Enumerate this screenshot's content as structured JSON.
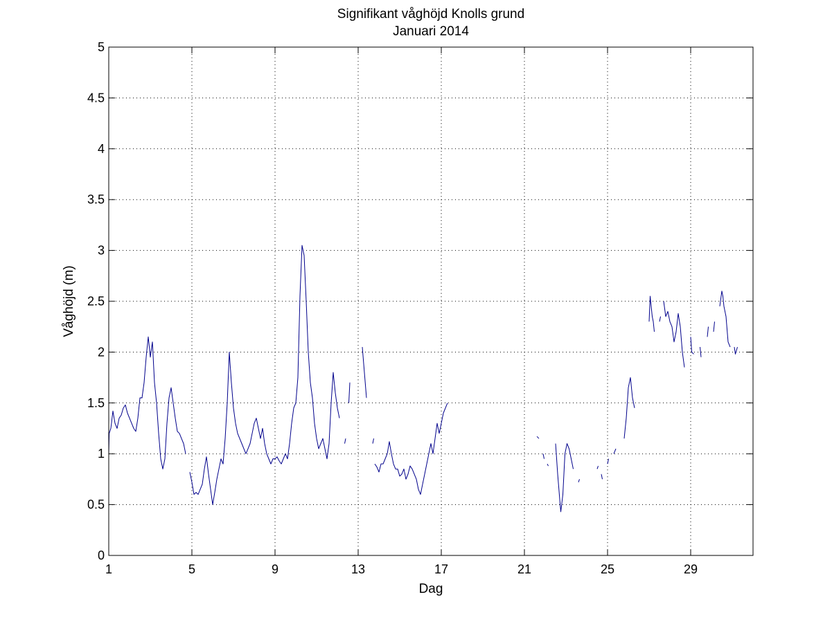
{
  "chart_data": {
    "type": "line",
    "title": "Signifikant våghöjd Knolls grund",
    "subtitle": "Januari 2014",
    "xlabel": "Dag",
    "ylabel": "Våghöjd (m)",
    "xlim": [
      1,
      32
    ],
    "ylim": [
      0,
      5
    ],
    "x_ticks": [
      1,
      5,
      9,
      13,
      17,
      21,
      25,
      29
    ],
    "y_ticks": [
      0,
      0.5,
      1,
      1.5,
      2,
      2.5,
      3,
      3.5,
      4,
      4.5,
      5
    ],
    "y_tick_labels": [
      "0",
      "0.5",
      "1",
      "1.5",
      "2",
      "2.5",
      "3",
      "3.5",
      "4",
      "4.5",
      "5"
    ],
    "grid": true,
    "colors": {
      "line": "#00008b",
      "grid": "#000000",
      "axes": "#000000"
    },
    "series": [
      {
        "segments": [
          [
            [
              1.0,
              1.0
            ],
            [
              1.02,
              1.2
            ],
            [
              1.1,
              1.25
            ],
            [
              1.2,
              1.42
            ],
            [
              1.3,
              1.3
            ],
            [
              1.4,
              1.25
            ],
            [
              1.5,
              1.35
            ],
            [
              1.6,
              1.38
            ],
            [
              1.7,
              1.45
            ],
            [
              1.8,
              1.48
            ],
            [
              1.9,
              1.4
            ],
            [
              2.0,
              1.35
            ],
            [
              2.1,
              1.3
            ],
            [
              2.2,
              1.25
            ],
            [
              2.3,
              1.22
            ],
            [
              2.4,
              1.35
            ],
            [
              2.5,
              1.55
            ],
            [
              2.6,
              1.55
            ],
            [
              2.7,
              1.7
            ],
            [
              2.8,
              1.95
            ],
            [
              2.9,
              2.15
            ],
            [
              3.0,
              1.95
            ],
            [
              3.1,
              2.1
            ],
            [
              3.2,
              1.7
            ],
            [
              3.3,
              1.5
            ],
            [
              3.4,
              1.2
            ],
            [
              3.5,
              0.95
            ],
            [
              3.6,
              0.85
            ],
            [
              3.7,
              0.95
            ],
            [
              3.8,
              1.3
            ],
            [
              3.9,
              1.55
            ],
            [
              4.0,
              1.65
            ],
            [
              4.1,
              1.5
            ],
            [
              4.2,
              1.35
            ],
            [
              4.3,
              1.22
            ],
            [
              4.4,
              1.2
            ],
            [
              4.5,
              1.15
            ],
            [
              4.6,
              1.1
            ],
            [
              4.7,
              1.0
            ]
          ],
          [
            [
              4.9,
              0.82
            ],
            [
              5.0,
              0.72
            ],
            [
              5.1,
              0.6
            ],
            [
              5.2,
              0.62
            ],
            [
              5.3,
              0.6
            ],
            [
              5.4,
              0.65
            ],
            [
              5.5,
              0.7
            ],
            [
              5.6,
              0.85
            ],
            [
              5.7,
              0.97
            ],
            [
              5.8,
              0.8
            ],
            [
              5.9,
              0.65
            ],
            [
              6.0,
              0.5
            ],
            [
              6.1,
              0.62
            ],
            [
              6.2,
              0.75
            ],
            [
              6.3,
              0.85
            ],
            [
              6.4,
              0.95
            ],
            [
              6.5,
              0.9
            ],
            [
              6.6,
              1.15
            ],
            [
              6.7,
              1.5
            ],
            [
              6.8,
              2.0
            ],
            [
              6.9,
              1.7
            ],
            [
              7.0,
              1.45
            ],
            [
              7.1,
              1.3
            ],
            [
              7.2,
              1.2
            ],
            [
              7.3,
              1.15
            ],
            [
              7.4,
              1.1
            ],
            [
              7.5,
              1.05
            ],
            [
              7.6,
              1.0
            ],
            [
              7.7,
              1.05
            ],
            [
              7.8,
              1.1
            ],
            [
              7.9,
              1.2
            ],
            [
              8.0,
              1.3
            ],
            [
              8.1,
              1.35
            ],
            [
              8.2,
              1.25
            ],
            [
              8.3,
              1.15
            ],
            [
              8.4,
              1.25
            ],
            [
              8.5,
              1.1
            ],
            [
              8.6,
              1.0
            ],
            [
              8.7,
              0.95
            ],
            [
              8.8,
              0.9
            ],
            [
              8.9,
              0.95
            ],
            [
              9.0,
              0.95
            ],
            [
              9.1,
              0.97
            ],
            [
              9.2,
              0.93
            ],
            [
              9.3,
              0.9
            ],
            [
              9.4,
              0.95
            ],
            [
              9.5,
              1.0
            ],
            [
              9.6,
              0.95
            ],
            [
              9.7,
              1.1
            ],
            [
              9.8,
              1.3
            ],
            [
              9.9,
              1.45
            ],
            [
              10.0,
              1.5
            ],
            [
              10.1,
              1.75
            ],
            [
              10.2,
              2.55
            ],
            [
              10.3,
              3.05
            ],
            [
              10.4,
              2.95
            ],
            [
              10.5,
              2.5
            ],
            [
              10.6,
              2.0
            ],
            [
              10.7,
              1.7
            ],
            [
              10.8,
              1.55
            ],
            [
              10.9,
              1.3
            ],
            [
              11.0,
              1.15
            ],
            [
              11.1,
              1.05
            ],
            [
              11.2,
              1.1
            ],
            [
              11.3,
              1.15
            ],
            [
              11.4,
              1.05
            ],
            [
              11.5,
              0.95
            ],
            [
              11.6,
              1.1
            ],
            [
              11.7,
              1.5
            ],
            [
              11.8,
              1.8
            ],
            [
              11.9,
              1.6
            ],
            [
              12.0,
              1.45
            ],
            [
              12.1,
              1.35
            ]
          ],
          [
            [
              12.35,
              1.1
            ],
            [
              12.4,
              1.15
            ]
          ],
          [
            [
              12.55,
              1.5
            ],
            [
              12.6,
              1.7
            ]
          ],
          [
            [
              13.2,
              2.05
            ],
            [
              13.3,
              1.8
            ],
            [
              13.4,
              1.55
            ]
          ],
          [
            [
              13.7,
              1.1
            ],
            [
              13.75,
              1.15
            ]
          ],
          [
            [
              13.8,
              0.9
            ],
            [
              13.9,
              0.87
            ],
            [
              14.0,
              0.82
            ],
            [
              14.1,
              0.9
            ],
            [
              14.2,
              0.9
            ],
            [
              14.3,
              0.95
            ],
            [
              14.4,
              1.0
            ],
            [
              14.5,
              1.12
            ],
            [
              14.6,
              1.0
            ],
            [
              14.7,
              0.9
            ],
            [
              14.8,
              0.85
            ],
            [
              14.9,
              0.85
            ],
            [
              15.0,
              0.78
            ],
            [
              15.1,
              0.8
            ],
            [
              15.2,
              0.85
            ],
            [
              15.3,
              0.75
            ],
            [
              15.4,
              0.8
            ],
            [
              15.5,
              0.88
            ],
            [
              15.6,
              0.85
            ],
            [
              15.7,
              0.8
            ],
            [
              15.8,
              0.75
            ],
            [
              15.9,
              0.65
            ],
            [
              16.0,
              0.6
            ],
            [
              16.1,
              0.7
            ],
            [
              16.2,
              0.8
            ],
            [
              16.3,
              0.9
            ],
            [
              16.4,
              1.0
            ],
            [
              16.5,
              1.1
            ],
            [
              16.6,
              1.0
            ],
            [
              16.7,
              1.15
            ],
            [
              16.8,
              1.3
            ],
            [
              16.9,
              1.2
            ],
            [
              17.0,
              1.3
            ],
            [
              17.1,
              1.4
            ],
            [
              17.2,
              1.45
            ],
            [
              17.3,
              1.5
            ]
          ],
          [
            [
              21.6,
              1.17
            ],
            [
              21.7,
              1.15
            ]
          ],
          [
            [
              21.9,
              1.0
            ],
            [
              21.95,
              0.95
            ]
          ],
          [
            [
              22.1,
              0.9
            ],
            [
              22.15,
              0.88
            ]
          ],
          [
            [
              22.5,
              1.1
            ],
            [
              22.6,
              0.8
            ],
            [
              22.7,
              0.55
            ],
            [
              22.75,
              0.43
            ],
            [
              22.85,
              0.6
            ],
            [
              22.95,
              1.0
            ],
            [
              23.05,
              1.1
            ],
            [
              23.15,
              1.05
            ],
            [
              23.25,
              0.95
            ],
            [
              23.35,
              0.85
            ]
          ],
          [
            [
              23.6,
              0.72
            ],
            [
              23.65,
              0.75
            ]
          ],
          [
            [
              24.5,
              0.85
            ],
            [
              24.55,
              0.88
            ]
          ],
          [
            [
              24.7,
              0.8
            ],
            [
              24.75,
              0.75
            ]
          ],
          [
            [
              25.0,
              0.9
            ],
            [
              25.05,
              0.95
            ]
          ],
          [
            [
              25.3,
              1.0
            ],
            [
              25.4,
              1.05
            ]
          ],
          [
            [
              25.8,
              1.15
            ],
            [
              25.9,
              1.35
            ],
            [
              26.0,
              1.65
            ],
            [
              26.1,
              1.75
            ],
            [
              26.2,
              1.55
            ],
            [
              26.3,
              1.45
            ]
          ],
          [
            [
              27.0,
              2.3
            ],
            [
              27.05,
              2.55
            ],
            [
              27.15,
              2.35
            ],
            [
              27.2,
              2.3
            ],
            [
              27.25,
              2.2
            ]
          ],
          [
            [
              27.5,
              2.3
            ],
            [
              27.55,
              2.35
            ]
          ],
          [
            [
              27.7,
              2.5
            ],
            [
              27.8,
              2.35
            ],
            [
              27.9,
              2.4
            ],
            [
              28.0,
              2.3
            ],
            [
              28.1,
              2.25
            ],
            [
              28.2,
              2.1
            ],
            [
              28.3,
              2.2
            ],
            [
              28.4,
              2.38
            ],
            [
              28.5,
              2.25
            ],
            [
              28.6,
              2.0
            ],
            [
              28.7,
              1.85
            ]
          ],
          [
            [
              29.0,
              2.15
            ],
            [
              29.05,
              2.0
            ],
            [
              29.15,
              1.98
            ]
          ],
          [
            [
              29.45,
              2.05
            ],
            [
              29.5,
              1.95
            ]
          ],
          [
            [
              29.8,
              2.15
            ],
            [
              29.85,
              2.25
            ]
          ],
          [
            [
              30.1,
              2.2
            ],
            [
              30.15,
              2.3
            ]
          ],
          [
            [
              30.4,
              2.45
            ],
            [
              30.5,
              2.6
            ],
            [
              30.55,
              2.55
            ],
            [
              30.6,
              2.45
            ],
            [
              30.7,
              2.35
            ],
            [
              30.8,
              2.1
            ],
            [
              30.9,
              2.05
            ]
          ],
          [
            [
              31.1,
              2.05
            ],
            [
              31.15,
              1.98
            ],
            [
              31.25,
              2.05
            ]
          ]
        ]
      }
    ]
  }
}
